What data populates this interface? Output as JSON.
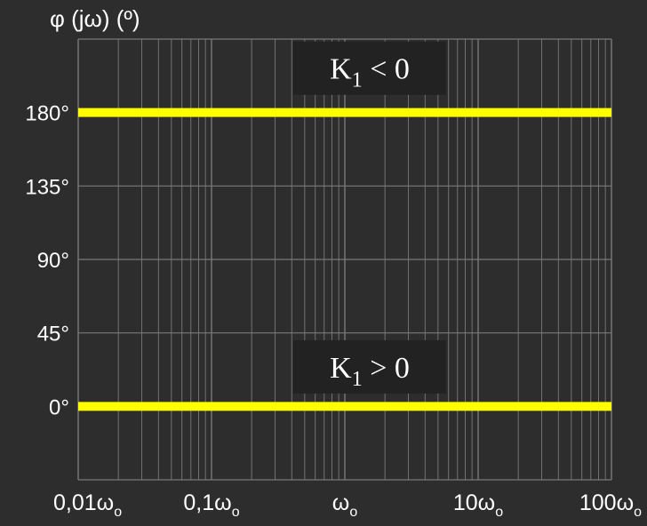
{
  "chart_data": {
    "type": "line",
    "ylabel": "φ (jω) (º)",
    "xscale": "log",
    "x_ticks": [
      0.01,
      0.1,
      1,
      10,
      100
    ],
    "x_tick_labels": [
      {
        "main": "0,01ω",
        "sub": "o"
      },
      {
        "main": "0,1ω",
        "sub": "o"
      },
      {
        "main": "ω",
        "sub": "o"
      },
      {
        "main": "10ω",
        "sub": "o"
      },
      {
        "main": "100ω",
        "sub": "o"
      }
    ],
    "xlim": [
      0.01,
      100
    ],
    "ylim": [
      -45,
      225
    ],
    "y_ticks": [
      0,
      45,
      90,
      135,
      180
    ],
    "y_tick_labels": [
      "0°",
      "45°",
      "90°",
      "135°",
      "180°"
    ],
    "grid": true,
    "series": [
      {
        "x": [
          0.01,
          100
        ],
        "y": [
          180,
          180
        ]
      },
      {
        "x": [
          0.01,
          100
        ],
        "y": [
          0,
          0
        ]
      }
    ],
    "annotations": [
      {
        "main": "K",
        "sub": "1",
        "rest": " < 0",
        "x": 1,
        "y": 205
      },
      {
        "main": "K",
        "sub": "1",
        "rest": " > 0",
        "x": 1,
        "y": 22
      }
    ]
  },
  "colors": {
    "background": "#2d2d2d",
    "grid": "#7a7a7a",
    "line": "#ffff00",
    "text": "#ffffff",
    "label_box": "#222222"
  }
}
